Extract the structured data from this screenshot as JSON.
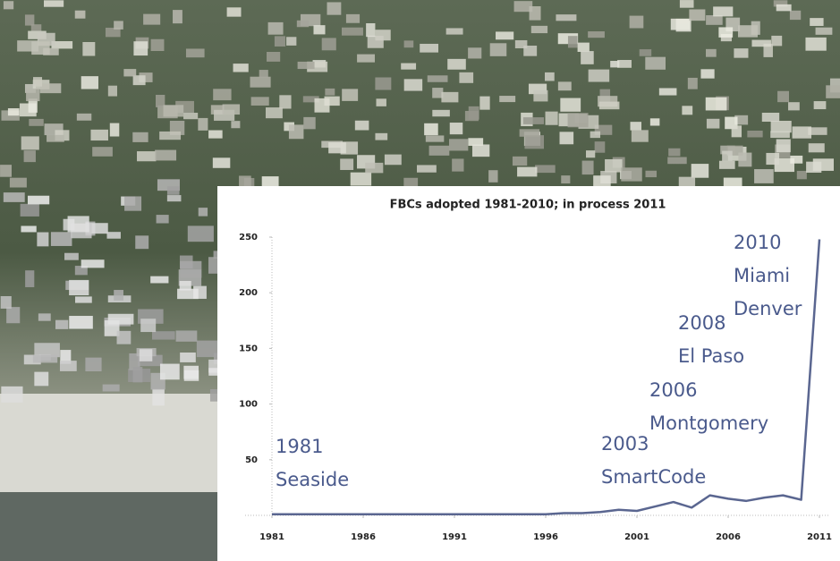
{
  "chart_data": {
    "type": "line",
    "title": "FBCs adopted 1981-2010; in process 2011",
    "x": [
      1981,
      1982,
      1983,
      1984,
      1985,
      1986,
      1987,
      1988,
      1989,
      1990,
      1991,
      1992,
      1993,
      1994,
      1995,
      1996,
      1997,
      1998,
      1999,
      2000,
      2001,
      2002,
      2003,
      2004,
      2005,
      2006,
      2007,
      2008,
      2009,
      2010,
      2011
    ],
    "series": [
      {
        "name": "FBCs",
        "color": "#5a6690",
        "values": [
          1,
          1,
          1,
          1,
          1,
          1,
          1,
          1,
          1,
          1,
          1,
          1,
          1,
          1,
          1,
          1,
          2,
          2,
          3,
          5,
          4,
          8,
          12,
          7,
          18,
          15,
          13,
          16,
          18,
          14,
          248
        ]
      }
    ],
    "xlim": [
      1981,
      2011
    ],
    "xticks": [
      1981,
      1986,
      1991,
      1996,
      2001,
      2006,
      2011
    ],
    "ylim": [
      0,
      250
    ],
    "yticks": [
      50,
      100,
      150,
      200,
      250
    ],
    "annotations": [
      {
        "lines": [
          "1981",
          "Seaside"
        ]
      },
      {
        "lines": [
          "2003",
          "SmartCode"
        ]
      },
      {
        "lines": [
          "2006",
          "Montgomery"
        ]
      },
      {
        "lines": [
          "2008",
          "El Paso"
        ]
      },
      {
        "lines": [
          "2010",
          "Miami",
          "Denver"
        ]
      }
    ]
  }
}
